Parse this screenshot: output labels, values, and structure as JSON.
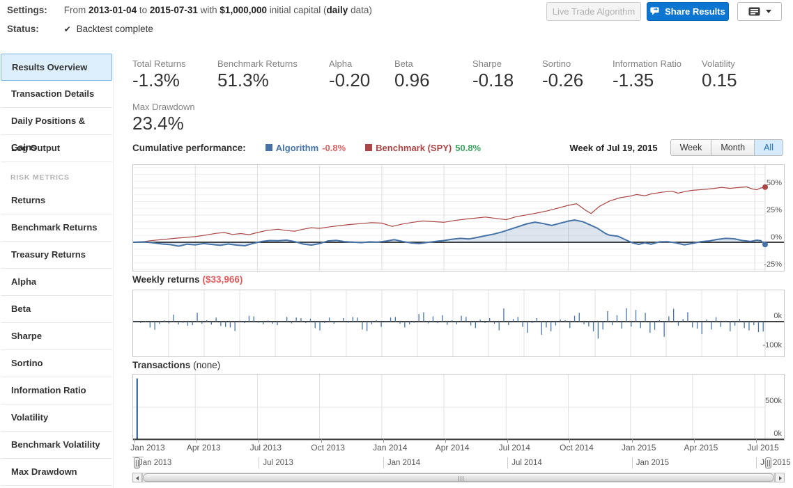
{
  "header": {
    "settings_label": "Settings:",
    "settings": {
      "t1": "From ",
      "date_from": "2013-01-04",
      "t2": " to ",
      "date_to": "2015-07-31",
      "t3": " with ",
      "capital": "$1,000,000",
      "t4": " initial capital (",
      "freq": "daily",
      "t5": " data)"
    },
    "status_label": "Status:",
    "check_icon": "✔",
    "status_text": "Backtest complete",
    "buttons": {
      "live_trade": "Live Trade Algorithm",
      "share": "Share Results"
    }
  },
  "sidebar": {
    "sections": [
      {
        "header": null,
        "items": [
          {
            "label": "Results Overview",
            "selected": true
          },
          {
            "label": "Transaction Details"
          },
          {
            "label": "Daily Positions & Gains"
          },
          {
            "label": "Log Output"
          }
        ]
      },
      {
        "header": "RISK METRICS",
        "items": [
          {
            "label": "Returns"
          },
          {
            "label": "Benchmark Returns"
          },
          {
            "label": "Treasury Returns"
          },
          {
            "label": "Alpha"
          },
          {
            "label": "Beta"
          },
          {
            "label": "Sharpe"
          },
          {
            "label": "Sortino"
          },
          {
            "label": "Information Ratio"
          },
          {
            "label": "Volatility"
          },
          {
            "label": "Benchmark Volatility"
          },
          {
            "label": "Max Drawdown"
          }
        ]
      }
    ]
  },
  "metrics": {
    "row1": [
      {
        "label": "Total Returns",
        "value": "-1.3%"
      },
      {
        "label": "Benchmark Returns",
        "value": "51.3%"
      },
      {
        "label": "Alpha",
        "value": "-0.20"
      },
      {
        "label": "Beta",
        "value": "0.96"
      },
      {
        "label": "Sharpe",
        "value": "-0.18"
      },
      {
        "label": "Sortino",
        "value": "-0.26"
      },
      {
        "label": "Information Ratio",
        "value": "-1.35"
      },
      {
        "label": "Volatility",
        "value": "0.15"
      }
    ],
    "row2": [
      {
        "label": "Max Drawdown",
        "value": "23.4%"
      }
    ]
  },
  "cumulative_header": {
    "title": "Cumulative performance:",
    "week_of": "Week of Jul 19, 2015",
    "range_buttons": [
      {
        "label": "Week",
        "active": false
      },
      {
        "label": "Month",
        "active": false
      },
      {
        "label": "All",
        "active": true
      }
    ]
  },
  "colors": {
    "accent_blue": "#0d76d1",
    "algorithm": "#4572a7",
    "benchmark": "#aa4643",
    "negative": "#e26060",
    "positive": "#3aa55d",
    "bar": "#4572a7"
  },
  "chart_data": [
    {
      "type": "line",
      "title": "Cumulative performance",
      "x_range": [
        "Jan 2013",
        "Jul 2015"
      ],
      "y_ticks": [
        {
          "value": 50,
          "label": "50%"
        },
        {
          "value": 25,
          "label": "25%"
        },
        {
          "value": 0,
          "label": "0%"
        },
        {
          "value": -25,
          "label": "-25%"
        }
      ],
      "series": [
        {
          "name": "Algorithm",
          "current": "-0.8%",
          "color": "#4572a7",
          "area": true,
          "points": [
            [
              0,
              0
            ],
            [
              0.5,
              0.4
            ],
            [
              1,
              -0.6
            ],
            [
              1.4,
              -1.6
            ],
            [
              1.8,
              -2.2
            ],
            [
              2.2,
              -3.6
            ],
            [
              2.6,
              -1.8
            ],
            [
              3,
              -2.4
            ],
            [
              3.4,
              -1.2
            ],
            [
              3.8,
              -2.0
            ],
            [
              4.2,
              -2.8
            ],
            [
              4.6,
              -1.6
            ],
            [
              5,
              -2.6
            ],
            [
              5.4,
              -3.2
            ],
            [
              5.8,
              -1.0
            ],
            [
              6.2,
              0.8
            ],
            [
              6.6,
              1.6
            ],
            [
              7,
              1.4
            ],
            [
              7.4,
              2.0
            ],
            [
              7.8,
              0.6
            ],
            [
              8.2,
              -1.6
            ],
            [
              8.6,
              -2.6
            ],
            [
              9,
              -1.2
            ],
            [
              9.4,
              1.2
            ],
            [
              9.8,
              1.8
            ],
            [
              10.2,
              0.6
            ],
            [
              10.6,
              0.2
            ],
            [
              11,
              -0.4
            ],
            [
              11.4,
              0.4
            ],
            [
              11.8,
              0.2
            ],
            [
              12.2,
              1.0
            ],
            [
              12.6,
              2.4
            ],
            [
              13,
              0.8
            ],
            [
              13.4,
              -0.6
            ],
            [
              13.8,
              -1.2
            ],
            [
              14.2,
              -0.2
            ],
            [
              14.6,
              0.8
            ],
            [
              15,
              1.6
            ],
            [
              15.4,
              2.8
            ],
            [
              15.8,
              3.6
            ],
            [
              16.2,
              3.0
            ],
            [
              16.6,
              4.4
            ],
            [
              17,
              6.0
            ],
            [
              17.4,
              7.5
            ],
            [
              17.8,
              9.5
            ],
            [
              18.2,
              12.0
            ],
            [
              18.6,
              14.5
            ],
            [
              19,
              17.0
            ],
            [
              19.4,
              18.5
            ],
            [
              19.8,
              17.2
            ],
            [
              20.2,
              15.5
            ],
            [
              20.6,
              17.5
            ],
            [
              21,
              19.5
            ],
            [
              21.3,
              20.5
            ],
            [
              21.7,
              19.0
            ],
            [
              22,
              16.5
            ],
            [
              22.4,
              13.0
            ],
            [
              22.8,
              8.0
            ],
            [
              23,
              6.5
            ],
            [
              23.4,
              5.5
            ],
            [
              23.8,
              2.0
            ],
            [
              24.1,
              -0.5
            ],
            [
              24.4,
              -2.0
            ],
            [
              24.7,
              -0.5
            ],
            [
              25,
              -1.8
            ],
            [
              25.4,
              0.4
            ],
            [
              25.8,
              0.6
            ],
            [
              26.2,
              -0.6
            ],
            [
              26.6,
              -2.4
            ],
            [
              27,
              -1.0
            ],
            [
              27.4,
              0.6
            ],
            [
              27.8,
              1.2
            ],
            [
              28.2,
              2.6
            ],
            [
              28.6,
              3.6
            ],
            [
              29,
              3.2
            ],
            [
              29.4,
              1.6
            ],
            [
              29.8,
              0.8
            ],
            [
              30.1,
              2.0
            ],
            [
              30.3,
              1.4
            ],
            [
              30.45,
              -1.6
            ],
            [
              30.5,
              -0.8
            ]
          ]
        },
        {
          "name": "Benchmark (SPY)",
          "current": "50.8%",
          "color": "#aa4643",
          "area": false,
          "points": [
            [
              0,
              0
            ],
            [
              0.5,
              0.6
            ],
            [
              1,
              1.8
            ],
            [
              1.5,
              2.6
            ],
            [
              2,
              3.6
            ],
            [
              2.5,
              4.4
            ],
            [
              3,
              5.2
            ],
            [
              3.5,
              6.6
            ],
            [
              4,
              8.2
            ],
            [
              4.4,
              9.0
            ],
            [
              4.8,
              7.2
            ],
            [
              5.2,
              8.0
            ],
            [
              5.6,
              7.0
            ],
            [
              6,
              9.0
            ],
            [
              6.5,
              11.0
            ],
            [
              7,
              12.0
            ],
            [
              7.4,
              10.8
            ],
            [
              7.8,
              10.2
            ],
            [
              8.2,
              12.0
            ],
            [
              8.6,
              13.4
            ],
            [
              9,
              12.8
            ],
            [
              9.5,
              14.2
            ],
            [
              10,
              15.4
            ],
            [
              10.5,
              16.4
            ],
            [
              11,
              17.2
            ],
            [
              11.5,
              18.0
            ],
            [
              12,
              17.6
            ],
            [
              12.5,
              14.6
            ],
            [
              13,
              16.8
            ],
            [
              13.5,
              18.4
            ],
            [
              14,
              19.6
            ],
            [
              14.5,
              19.0
            ],
            [
              15,
              18.4
            ],
            [
              15.5,
              20.0
            ],
            [
              16,
              21.2
            ],
            [
              16.5,
              22.2
            ],
            [
              17,
              23.2
            ],
            [
              17.5,
              22.0
            ],
            [
              18,
              20.8
            ],
            [
              18.5,
              23.6
            ],
            [
              19,
              25.2
            ],
            [
              19.5,
              27.0
            ],
            [
              20,
              29.0
            ],
            [
              20.5,
              31.5
            ],
            [
              21,
              34.0
            ],
            [
              21.4,
              35.5
            ],
            [
              21.8,
              30.0
            ],
            [
              22.1,
              26.5
            ],
            [
              22.5,
              33.0
            ],
            [
              23,
              38.0
            ],
            [
              23.5,
              41.0
            ],
            [
              24,
              42.5
            ],
            [
              24.3,
              44.0
            ],
            [
              24.7,
              42.8
            ],
            [
              25,
              44.5
            ],
            [
              25.5,
              46.0
            ],
            [
              26,
              47.0
            ],
            [
              26.3,
              45.2
            ],
            [
              26.7,
              47.0
            ],
            [
              27,
              47.8
            ],
            [
              27.5,
              48.6
            ],
            [
              28,
              49.4
            ],
            [
              28.4,
              50.6
            ],
            [
              28.8,
              49.6
            ],
            [
              29.2,
              50.4
            ],
            [
              29.6,
              51.0
            ],
            [
              29.9,
              49.0
            ],
            [
              30.1,
              48.4
            ],
            [
              30.3,
              50.0
            ],
            [
              30.5,
              50.8
            ]
          ]
        }
      ]
    },
    {
      "type": "bar",
      "title": "Weekly returns",
      "current": "($33,966)",
      "y_ticks": [
        {
          "value": 0,
          "label": "0k"
        },
        {
          "value": -100,
          "label": "-100k"
        }
      ],
      "values_k": [
        3,
        -5,
        2,
        -20,
        -28,
        -8,
        4,
        -6,
        24,
        -10,
        -4,
        -14,
        -12,
        30,
        -7,
        5,
        -10,
        14,
        -15,
        -18,
        -20,
        -32,
        3,
        -5,
        20,
        18,
        -4,
        -9,
        4,
        -7,
        -12,
        3,
        16,
        -6,
        14,
        12,
        -5,
        10,
        -22,
        -30,
        -5,
        14,
        -7,
        3,
        12,
        -4,
        16,
        14,
        -27,
        -32,
        -9,
        5,
        -18,
        -3,
        14,
        16,
        -7,
        -20,
        -9,
        -4,
        26,
        32,
        -6,
        18,
        -5,
        22,
        -11,
        5,
        -9,
        20,
        16,
        -13,
        -22,
        7,
        -5,
        12,
        -7,
        -30,
        45,
        -12,
        9,
        16,
        -18,
        -38,
        -5,
        12,
        -45,
        -20,
        -33,
        -13,
        7,
        5,
        -22,
        20,
        30,
        -9,
        -16,
        -33,
        -58,
        -27,
        36,
        -12,
        22,
        -24,
        46,
        -17,
        40,
        -22,
        30,
        -38,
        -28,
        5,
        -52,
        18,
        44,
        -14,
        9,
        32,
        -20,
        -24,
        -43,
        7,
        -27,
        15,
        -18,
        3,
        -33,
        -14,
        9,
        -22,
        -30,
        -12,
        -36,
        -34
      ]
    },
    {
      "type": "bar",
      "title": "Transactions",
      "current": "(none)",
      "y_ticks": [
        {
          "value": 500,
          "label": "500k"
        },
        {
          "value": 0,
          "label": "0k"
        }
      ],
      "bars_k": [
        {
          "m": 0.12,
          "value": 930
        }
      ]
    }
  ],
  "x_axis_labels": [
    {
      "m": 0,
      "label": "Jan 2013"
    },
    {
      "m": 3,
      "label": "Apr 2013"
    },
    {
      "m": 6,
      "label": "Jul 2013"
    },
    {
      "m": 9,
      "label": "Oct 2013"
    },
    {
      "m": 12,
      "label": "Jan 2014"
    },
    {
      "m": 15,
      "label": "Apr 2014"
    },
    {
      "m": 18,
      "label": "Jul 2014"
    },
    {
      "m": 21,
      "label": "Oct 2014"
    },
    {
      "m": 24,
      "label": "Jan 2015"
    },
    {
      "m": 27,
      "label": "Apr 2015"
    },
    {
      "m": 30,
      "label": "Jul 2015"
    }
  ],
  "navigator": {
    "labels": [
      {
        "m": 0,
        "label": "Jan 2013"
      },
      {
        "m": 6,
        "label": "Jul 2013"
      },
      {
        "m": 12,
        "label": "Jan 2014"
      },
      {
        "m": 18,
        "label": "Jul 2014"
      },
      {
        "m": 24,
        "label": "Jan 2015"
      },
      {
        "m": 30,
        "label": "Jul 2015"
      }
    ]
  }
}
